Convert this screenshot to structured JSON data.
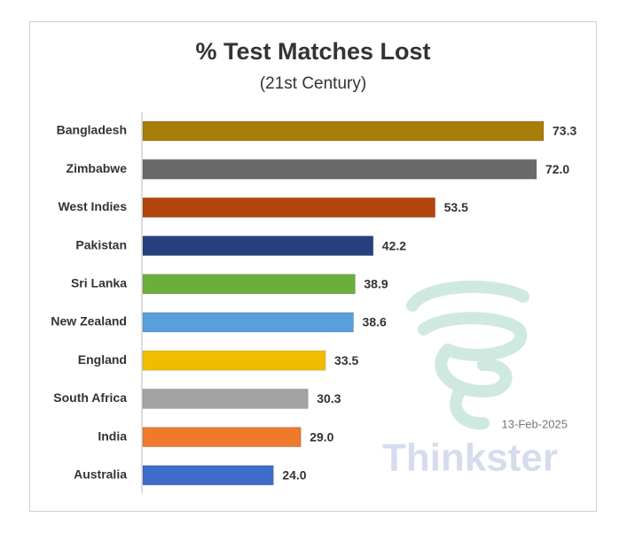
{
  "chart_data": {
    "type": "hbar",
    "title": "% Test Matches Lost",
    "subtitle": "(21st Century)",
    "categories": [
      "Bangladesh",
      "Zimbabwe",
      "West Indies",
      "Pakistan",
      "Sri Lanka",
      "New Zealand",
      "England",
      "South Africa",
      "India",
      "Australia"
    ],
    "values": [
      73.3,
      72.0,
      53.5,
      42.2,
      38.9,
      38.6,
      33.5,
      30.3,
      29.0,
      24.0
    ],
    "value_labels": [
      "73.3",
      "72.0",
      "53.5",
      "42.2",
      "38.9",
      "38.6",
      "33.5",
      "30.3",
      "29.0",
      "24.0"
    ],
    "colors": [
      "#a87d0a",
      "#6a6a6a",
      "#b2450e",
      "#26417e",
      "#6cae3e",
      "#5a9fdc",
      "#f2bd00",
      "#a3a3a3",
      "#ef7a2c",
      "#3f6dcb"
    ],
    "date": "13-Feb-2025",
    "watermark": "Thinkster"
  }
}
